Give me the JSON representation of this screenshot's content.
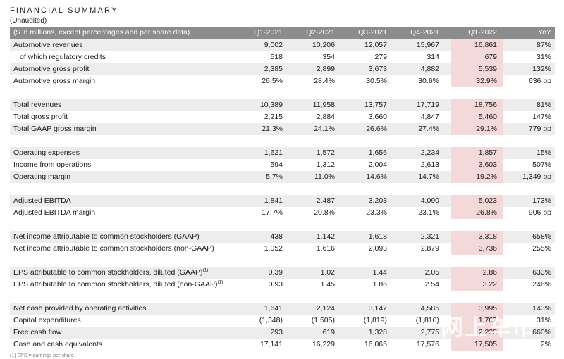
{
  "title": "FINANCIAL SUMMARY",
  "subtitle": "(Unaudited)",
  "header": {
    "label": "($ in millions, except percentages and per share data)",
    "cols": [
      "Q1-2021",
      "Q2-2021",
      "Q3-2021",
      "Q4-2021",
      "Q1-2022",
      "YoY"
    ]
  },
  "highlight_color": "#f4d9da",
  "rows": [
    {
      "label": "Automotive revenues",
      "values": [
        "9,002",
        "10,206",
        "12,057",
        "15,967",
        "16,861",
        "87%"
      ]
    },
    {
      "label": "of which regulatory credits",
      "values": [
        "518",
        "354",
        "279",
        "314",
        "679",
        "31%"
      ]
    },
    {
      "label": "Automotive gross profit",
      "values": [
        "2,385",
        "2,899",
        "3,673",
        "4,882",
        "5,539",
        "132%"
      ]
    },
    {
      "label": "Automotive gross margin",
      "values": [
        "26.5%",
        "28.4%",
        "30.5%",
        "30.6%",
        "32.9%",
        "636 bp"
      ]
    },
    {
      "label": "Total revenues",
      "values": [
        "10,389",
        "11,958",
        "13,757",
        "17,719",
        "18,756",
        "81%"
      ]
    },
    {
      "label": "Total gross profit",
      "values": [
        "2,215",
        "2,884",
        "3,660",
        "4,847",
        "5,460",
        "147%"
      ]
    },
    {
      "label": "Total GAAP gross margin",
      "values": [
        "21.3%",
        "24.1%",
        "26.6%",
        "27.4%",
        "29.1%",
        "779 bp"
      ]
    },
    {
      "label": "Operating expenses",
      "values": [
        "1,621",
        "1,572",
        "1,656",
        "2,234",
        "1,857",
        "15%"
      ]
    },
    {
      "label": "Income from operations",
      "values": [
        "594",
        "1,312",
        "2,004",
        "2,613",
        "3,603",
        "507%"
      ]
    },
    {
      "label": "Operating margin",
      "values": [
        "5.7%",
        "11.0%",
        "14.6%",
        "14.7%",
        "19.2%",
        "1,349 bp"
      ]
    },
    {
      "label": "Adjusted EBITDA",
      "values": [
        "1,841",
        "2,487",
        "3,203",
        "4,090",
        "5,023",
        "173%"
      ]
    },
    {
      "label": "Adjusted EBITDA margin",
      "values": [
        "17.7%",
        "20.8%",
        "23.3%",
        "23.1%",
        "26.8%",
        "906 bp"
      ]
    },
    {
      "label": "Net income attributable to common stockholders (GAAP)",
      "values": [
        "438",
        "1,142",
        "1,618",
        "2,321",
        "3,318",
        "658%"
      ]
    },
    {
      "label": "Net income attributable to common stockholders (non-GAAP)",
      "values": [
        "1,052",
        "1,616",
        "2,093",
        "2,879",
        "3,736",
        "255%"
      ]
    },
    {
      "label": "EPS attributable to common stockholders, diluted (GAAP)",
      "sup": "(1)",
      "values": [
        "0.39",
        "1.02",
        "1.44",
        "2.05",
        "2.86",
        "633%"
      ]
    },
    {
      "label": "EPS attributable to common stockholders, diluted (non-GAAP)",
      "sup": "(1)",
      "values": [
        "0.93",
        "1.45",
        "1.86",
        "2.54",
        "3.22",
        "246%"
      ]
    },
    {
      "label": "Net cash provided by operating activities",
      "values": [
        "1,641",
        "2,124",
        "3,147",
        "4,585",
        "3,995",
        "143%"
      ]
    },
    {
      "label": "Capital expenditures",
      "values": [
        "(1,348)",
        "(1,505)",
        "(1,819)",
        "(1,810)",
        "1,767",
        "31%"
      ]
    },
    {
      "label": "Free cash flow",
      "values": [
        "293",
        "619",
        "1,328",
        "2,775",
        "2,228",
        "660%"
      ]
    },
    {
      "label": "Cash and cash equivalents",
      "values": [
        "17,141",
        "16,229",
        "16,065",
        "17,576",
        "17,505",
        "2%"
      ]
    }
  ],
  "watermark": "网上车市",
  "footnote": "(1) EPS = earnings per share"
}
